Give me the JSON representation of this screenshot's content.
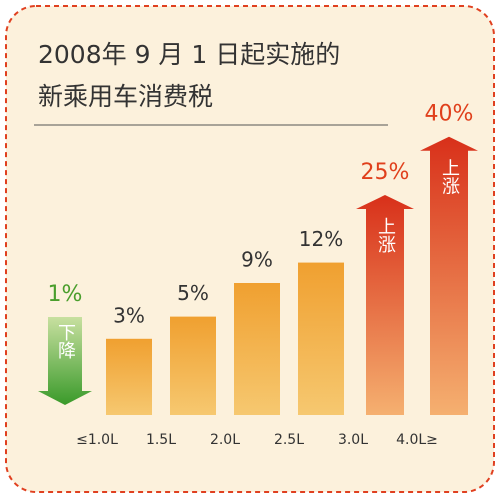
{
  "chart_data": {
    "type": "bar",
    "title_lines": [
      "2008年 9 月 1 日起实施的",
      "新乘用车消费税"
    ],
    "values": [
      1,
      3,
      5,
      9,
      12,
      25,
      40
    ],
    "value_labels": [
      "1%",
      "3%",
      "5%",
      "9%",
      "12%",
      "25%",
      "40%"
    ],
    "kinds": [
      "down",
      "bar",
      "bar",
      "bar",
      "bar",
      "up",
      "up"
    ],
    "arrow_labels": {
      "down": "下降",
      "up": "上涨"
    },
    "colors": {
      "down": "#4a9e2c",
      "bar": "#e8861a",
      "up": "#e0401c"
    },
    "boundary_labels": [
      "≤1.0L",
      "1.5L",
      "2.0L",
      "2.5L",
      "3.0L",
      "4.0L≥"
    ],
    "scale": "sqrt"
  }
}
